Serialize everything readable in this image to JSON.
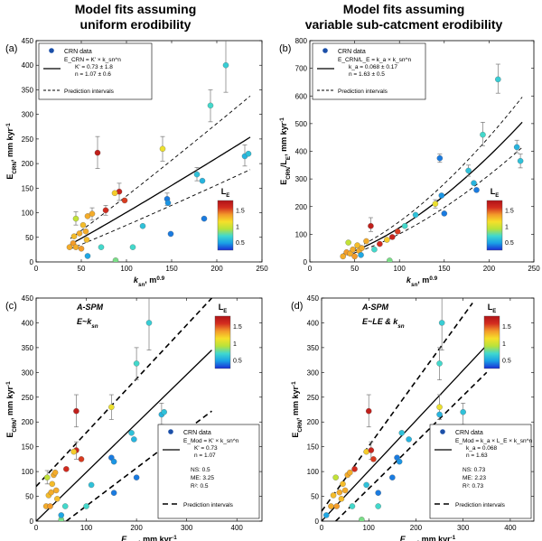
{
  "column_titles": {
    "left_line1": "Model fits assuming",
    "left_line2": "uniform erodibility",
    "right_line1": "Model fits assuming",
    "right_line2": "variable sub-catcment erodibility"
  },
  "colorbar": {
    "label": "L",
    "sub": "E",
    "ticks": [
      "1.5",
      "1",
      "0.5"
    ],
    "stops": [
      "#1a2dd4",
      "#1aa0e6",
      "#3fd8d0",
      "#b8e23a",
      "#f6e02a",
      "#f39a2a",
      "#d42d1f",
      "#b01318"
    ],
    "range": [
      0.25,
      1.8
    ]
  },
  "chart_data": [
    {
      "panel": "(a)",
      "type": "scatter",
      "xlabel": "k",
      "xlabel_sub": "sn",
      "xlabel_unit": ", m",
      "xlabel_sup": "0.9",
      "ylabel": "E",
      "ylabel_sub": "CRN",
      "ylabel_unit": ", mm kyr",
      "ylabel_sup": "-1",
      "xlim": [
        0,
        250
      ],
      "ylim": [
        0,
        450
      ],
      "xticks": [
        0,
        50,
        100,
        150,
        200,
        250
      ],
      "yticks": [
        0,
        50,
        100,
        150,
        200,
        250,
        300,
        350,
        400,
        450
      ],
      "legend": {
        "marker": "CRN data",
        "eq_lines": [
          "E_CRN = K' × k_sn^n",
          "K' = 0.73 ± 1.8",
          "n = 1.07 ± 0.6"
        ],
        "dash": "Prediction intervals",
        "position": "top-left"
      },
      "points": [
        {
          "x": 37,
          "y": 30,
          "le": 1.3
        },
        {
          "x": 41,
          "y": 38,
          "le": 1.35
        },
        {
          "x": 42,
          "y": 52,
          "le": 1.25
        },
        {
          "x": 44,
          "y": 88,
          "le": 0.95
        },
        {
          "x": 44,
          "y": 30,
          "le": 1.3
        },
        {
          "x": 48,
          "y": 58,
          "le": 1.3
        },
        {
          "x": 50,
          "y": 27,
          "le": 1.35
        },
        {
          "x": 52,
          "y": 75,
          "le": 1.25
        },
        {
          "x": 55,
          "y": 62,
          "le": 1.3
        },
        {
          "x": 57,
          "y": 93,
          "le": 1.3
        },
        {
          "x": 56,
          "y": 45,
          "le": 1.25
        },
        {
          "x": 57,
          "y": 12,
          "le": 0.5
        },
        {
          "x": 62,
          "y": 98,
          "le": 1.3
        },
        {
          "x": 68,
          "y": 222,
          "le": 1.7
        },
        {
          "x": 72,
          "y": 30,
          "le": 0.7
        },
        {
          "x": 77,
          "y": 105,
          "le": 1.6
        },
        {
          "x": 92,
          "y": 143,
          "le": 1.65
        },
        {
          "x": 87,
          "y": 140,
          "le": 1.2
        },
        {
          "x": 98,
          "y": 125,
          "le": 1.55
        },
        {
          "x": 88,
          "y": 3,
          "le": 0.8
        },
        {
          "x": 107,
          "y": 30,
          "le": 0.7
        },
        {
          "x": 118,
          "y": 73,
          "le": 0.6
        },
        {
          "x": 140,
          "y": 230,
          "le": 1.1
        },
        {
          "x": 145,
          "y": 128,
          "le": 0.4
        },
        {
          "x": 146,
          "y": 120,
          "le": 0.45
        },
        {
          "x": 149,
          "y": 57,
          "le": 0.4
        },
        {
          "x": 178,
          "y": 178,
          "le": 0.6
        },
        {
          "x": 184,
          "y": 165,
          "le": 0.55
        },
        {
          "x": 186,
          "y": 88,
          "le": 0.4
        },
        {
          "x": 193,
          "y": 318,
          "le": 0.7
        },
        {
          "x": 210,
          "y": 400,
          "le": 0.65
        },
        {
          "x": 231,
          "y": 215,
          "le": 0.55
        },
        {
          "x": 235,
          "y": 220,
          "le": 0.6
        }
      ],
      "errorbars": [
        {
          "x": 68,
          "lo": 190,
          "hi": 255
        },
        {
          "x": 140,
          "lo": 205,
          "hi": 255
        },
        {
          "x": 193,
          "lo": 285,
          "hi": 350
        },
        {
          "x": 210,
          "lo": 345,
          "hi": 452
        },
        {
          "x": 92,
          "lo": 125,
          "hi": 160
        },
        {
          "x": 44,
          "lo": 75,
          "hi": 102
        },
        {
          "x": 62,
          "lo": 85,
          "hi": 110
        },
        {
          "x": 231,
          "lo": 195,
          "hi": 238
        },
        {
          "x": 178,
          "lo": 165,
          "hi": 192
        },
        {
          "x": 145,
          "lo": 115,
          "hi": 140
        },
        {
          "x": 77,
          "lo": 95,
          "hi": 115
        }
      ],
      "fit": {
        "k": 0.73,
        "n": 1.07
      },
      "band": {
        "lo": 0.74,
        "hi": 1.33
      },
      "fit_range": [
        38,
        237
      ]
    },
    {
      "panel": "(b)",
      "type": "scatter",
      "xlabel": "k",
      "xlabel_sub": "sn",
      "xlabel_unit": ", m",
      "xlabel_sup": "0.9",
      "ylabel": "E",
      "ylabel_sub": "CRN",
      "ylabel_mid": "/L",
      "ylabel_sub2": "E",
      "ylabel_unit": ", mm kyr",
      "ylabel_sup": "-1",
      "xlim": [
        0,
        250
      ],
      "ylim": [
        0,
        800
      ],
      "xticks": [
        0,
        50,
        100,
        150,
        200,
        250
      ],
      "yticks": [
        0,
        100,
        200,
        300,
        400,
        500,
        600,
        700,
        800
      ],
      "legend": {
        "marker": "CRN data",
        "eq_lines": [
          "E_CRN/L_E = k_a × k_sn^n",
          "k_a = 0.068 ± 0.17",
          "n = 1.63 ± 0.5"
        ],
        "dash": "Prediction intervals",
        "position": "top-left"
      },
      "points": [
        {
          "x": 37,
          "y": 20,
          "le": 1.3
        },
        {
          "x": 41,
          "y": 35,
          "le": 1.35
        },
        {
          "x": 43,
          "y": 70,
          "le": 0.95
        },
        {
          "x": 45,
          "y": 30,
          "le": 1.3
        },
        {
          "x": 48,
          "y": 45,
          "le": 1.3
        },
        {
          "x": 50,
          "y": 20,
          "le": 1.35
        },
        {
          "x": 53,
          "y": 60,
          "le": 1.25
        },
        {
          "x": 55,
          "y": 40,
          "le": 1.3
        },
        {
          "x": 57,
          "y": 25,
          "le": 0.5
        },
        {
          "x": 58,
          "y": 50,
          "le": 1.3
        },
        {
          "x": 63,
          "y": 75,
          "le": 1.3
        },
        {
          "x": 68,
          "y": 130,
          "le": 1.7
        },
        {
          "x": 72,
          "y": 45,
          "le": 0.7
        },
        {
          "x": 78,
          "y": 65,
          "le": 1.6
        },
        {
          "x": 86,
          "y": 80,
          "le": 1.2
        },
        {
          "x": 92,
          "y": 90,
          "le": 1.65
        },
        {
          "x": 98,
          "y": 110,
          "le": 1.55
        },
        {
          "x": 89,
          "y": 5,
          "le": 0.8
        },
        {
          "x": 106,
          "y": 130,
          "le": 0.7
        },
        {
          "x": 118,
          "y": 170,
          "le": 0.6
        },
        {
          "x": 140,
          "y": 210,
          "le": 1.1
        },
        {
          "x": 145,
          "y": 375,
          "le": 0.4
        },
        {
          "x": 147,
          "y": 240,
          "le": 0.45
        },
        {
          "x": 150,
          "y": 175,
          "le": 0.4
        },
        {
          "x": 177,
          "y": 330,
          "le": 0.6
        },
        {
          "x": 183,
          "y": 285,
          "le": 0.55
        },
        {
          "x": 186,
          "y": 260,
          "le": 0.4
        },
        {
          "x": 193,
          "y": 460,
          "le": 0.7
        },
        {
          "x": 210,
          "y": 660,
          "le": 0.65
        },
        {
          "x": 231,
          "y": 415,
          "le": 0.55
        },
        {
          "x": 235,
          "y": 365,
          "le": 0.6
        }
      ],
      "errorbars": [
        {
          "x": 210,
          "lo": 610,
          "hi": 715
        },
        {
          "x": 193,
          "lo": 420,
          "hi": 505
        },
        {
          "x": 68,
          "lo": 110,
          "hi": 160
        },
        {
          "x": 145,
          "lo": 360,
          "hi": 390
        },
        {
          "x": 231,
          "lo": 395,
          "hi": 440
        },
        {
          "x": 235,
          "lo": 340,
          "hi": 390
        },
        {
          "x": 177,
          "lo": 310,
          "hi": 350
        },
        {
          "x": 140,
          "lo": 195,
          "hi": 225
        }
      ],
      "fit": {
        "k": 0.068,
        "n": 1.63
      },
      "band": {
        "lo": 0.82,
        "hi": 1.18
      },
      "fit_range": [
        35,
        237
      ]
    },
    {
      "panel": "(c)",
      "type": "scatter",
      "xlabel": "E",
      "xlabel_sub": "Mod",
      "xlabel_unit": ", mm kyr",
      "xlabel_sup": "-1",
      "ylabel": "E",
      "ylabel_sub": "CRN",
      "ylabel_unit": ", mm kyr",
      "ylabel_sup": "-1",
      "xlim": [
        0,
        450
      ],
      "ylim": [
        0,
        450
      ],
      "xticks": [
        0,
        100,
        200,
        300,
        400
      ],
      "yticks": [
        0,
        50,
        100,
        150,
        200,
        250,
        300,
        350,
        400,
        450
      ],
      "model_label": "A-SPM",
      "model_eq": "E~k",
      "model_eq_sub": "sn",
      "legend": {
        "marker": "CRN data",
        "eq_lines": [
          "E_Mod = K' × k_sn^n",
          "K' = 0.73",
          "n = 1.07"
        ],
        "stats": [
          "NS: 0.5",
          "ME: 3.25",
          "R²: 0.5"
        ],
        "dash": "Prediction intervals",
        "position": "bottom-right"
      },
      "points": [
        {
          "x": 20,
          "y": 30,
          "le": 1.3
        },
        {
          "x": 22,
          "y": 88,
          "le": 0.95
        },
        {
          "x": 25,
          "y": 52,
          "le": 1.25
        },
        {
          "x": 28,
          "y": 30,
          "le": 1.35
        },
        {
          "x": 30,
          "y": 58,
          "le": 1.3
        },
        {
          "x": 32,
          "y": 75,
          "le": 1.25
        },
        {
          "x": 35,
          "y": 93,
          "le": 1.3
        },
        {
          "x": 38,
          "y": 98,
          "le": 1.3
        },
        {
          "x": 40,
          "y": 62,
          "le": 1.3
        },
        {
          "x": 42,
          "y": 45,
          "le": 1.25
        },
        {
          "x": 50,
          "y": 3,
          "le": 0.8
        },
        {
          "x": 50,
          "y": 12,
          "le": 0.5
        },
        {
          "x": 58,
          "y": 30,
          "le": 0.7
        },
        {
          "x": 60,
          "y": 105,
          "le": 1.6
        },
        {
          "x": 80,
          "y": 143,
          "le": 1.65
        },
        {
          "x": 80,
          "y": 222,
          "le": 1.7
        },
        {
          "x": 75,
          "y": 140,
          "le": 1.2
        },
        {
          "x": 90,
          "y": 125,
          "le": 1.55
        },
        {
          "x": 100,
          "y": 30,
          "le": 0.7
        },
        {
          "x": 110,
          "y": 73,
          "le": 0.6
        },
        {
          "x": 150,
          "y": 230,
          "le": 1.1
        },
        {
          "x": 150,
          "y": 128,
          "le": 0.4
        },
        {
          "x": 155,
          "y": 120,
          "le": 0.45
        },
        {
          "x": 155,
          "y": 57,
          "le": 0.4
        },
        {
          "x": 190,
          "y": 178,
          "le": 0.6
        },
        {
          "x": 195,
          "y": 165,
          "le": 0.55
        },
        {
          "x": 200,
          "y": 88,
          "le": 0.4
        },
        {
          "x": 200,
          "y": 318,
          "le": 0.7
        },
        {
          "x": 225,
          "y": 400,
          "le": 0.65
        },
        {
          "x": 250,
          "y": 215,
          "le": 0.55
        },
        {
          "x": 255,
          "y": 220,
          "le": 0.6
        }
      ],
      "errorbars": [
        {
          "x": 80,
          "lo": 190,
          "hi": 255
        },
        {
          "x": 150,
          "lo": 205,
          "hi": 255
        },
        {
          "x": 200,
          "lo": 285,
          "hi": 350
        },
        {
          "x": 225,
          "lo": 345,
          "hi": 452
        },
        {
          "x": 80,
          "lo": 125,
          "hi": 160
        },
        {
          "x": 22,
          "lo": 75,
          "hi": 102
        },
        {
          "x": 250,
          "lo": 195,
          "hi": 238
        }
      ],
      "one_to_one": [
        [
          0,
          0
        ],
        [
          350,
          345
        ]
      ],
      "pi_upper": [
        [
          0,
          70
        ],
        [
          350,
          450
        ]
      ],
      "pi_lower": [
        [
          60,
          0
        ],
        [
          350,
          222
        ]
      ]
    },
    {
      "panel": "(d)",
      "type": "scatter",
      "xlabel": "E",
      "xlabel_sub": "Mod",
      "xlabel_unit": ", mm kyr",
      "xlabel_sup": "-1",
      "ylabel": "E",
      "ylabel_sub": "CRN",
      "ylabel_unit": ", mm kyr",
      "ylabel_sup": "-1",
      "xlim": [
        0,
        450
      ],
      "ylim": [
        0,
        450
      ],
      "xticks": [
        0,
        100,
        200,
        300,
        400
      ],
      "yticks": [
        0,
        50,
        100,
        150,
        200,
        250,
        300,
        350,
        400,
        450
      ],
      "model_label": "A-SPM",
      "model_eq": "E~LE & k",
      "model_eq_sub": "sn",
      "legend": {
        "marker": "CRN data",
        "eq_lines": [
          "E_Mod = k_a × L_E × k_sn^n",
          "k_a = 0.068",
          "n = 1.63"
        ],
        "stats": [
          "NS: 0.73",
          "ME: 2.23",
          "R²: 0.73"
        ],
        "dash": "Prediction intervals",
        "position": "bottom-right"
      },
      "points": [
        {
          "x": 10,
          "y": 12,
          "le": 0.5
        },
        {
          "x": 20,
          "y": 30,
          "le": 1.3
        },
        {
          "x": 25,
          "y": 52,
          "le": 1.25
        },
        {
          "x": 30,
          "y": 88,
          "le": 0.95
        },
        {
          "x": 32,
          "y": 30,
          "le": 1.35
        },
        {
          "x": 38,
          "y": 58,
          "le": 1.3
        },
        {
          "x": 42,
          "y": 45,
          "le": 1.25
        },
        {
          "x": 45,
          "y": 75,
          "le": 1.25
        },
        {
          "x": 50,
          "y": 62,
          "le": 1.3
        },
        {
          "x": 55,
          "y": 93,
          "le": 1.3
        },
        {
          "x": 60,
          "y": 98,
          "le": 1.3
        },
        {
          "x": 65,
          "y": 30,
          "le": 0.7
        },
        {
          "x": 85,
          "y": 3,
          "le": 0.8
        },
        {
          "x": 70,
          "y": 105,
          "le": 1.6
        },
        {
          "x": 95,
          "y": 140,
          "le": 1.2
        },
        {
          "x": 105,
          "y": 143,
          "le": 1.65
        },
        {
          "x": 100,
          "y": 222,
          "le": 1.7
        },
        {
          "x": 110,
          "y": 125,
          "le": 1.55
        },
        {
          "x": 95,
          "y": 73,
          "le": 0.6
        },
        {
          "x": 120,
          "y": 30,
          "le": 0.7
        },
        {
          "x": 120,
          "y": 57,
          "le": 0.4
        },
        {
          "x": 160,
          "y": 128,
          "le": 0.4
        },
        {
          "x": 165,
          "y": 120,
          "le": 0.45
        },
        {
          "x": 170,
          "y": 178,
          "le": 0.6
        },
        {
          "x": 185,
          "y": 165,
          "le": 0.55
        },
        {
          "x": 150,
          "y": 88,
          "le": 0.4
        },
        {
          "x": 250,
          "y": 230,
          "le": 1.1
        },
        {
          "x": 250,
          "y": 318,
          "le": 0.7
        },
        {
          "x": 255,
          "y": 400,
          "le": 0.65
        },
        {
          "x": 250,
          "y": 215,
          "le": 0.55
        },
        {
          "x": 300,
          "y": 220,
          "le": 0.6
        }
      ],
      "errorbars": [
        {
          "x": 100,
          "lo": 190,
          "hi": 255
        },
        {
          "x": 250,
          "lo": 205,
          "hi": 255
        },
        {
          "x": 250,
          "lo": 285,
          "hi": 350
        },
        {
          "x": 255,
          "lo": 345,
          "hi": 452
        },
        {
          "x": 105,
          "lo": 125,
          "hi": 160
        },
        {
          "x": 300,
          "lo": 195,
          "hi": 238
        }
      ],
      "one_to_one": [
        [
          0,
          0
        ],
        [
          350,
          355
        ]
      ],
      "pi_upper": [
        [
          0,
          20
        ],
        [
          320,
          440
        ]
      ],
      "pi_lower": [
        [
          30,
          0
        ],
        [
          350,
          300
        ]
      ]
    }
  ]
}
